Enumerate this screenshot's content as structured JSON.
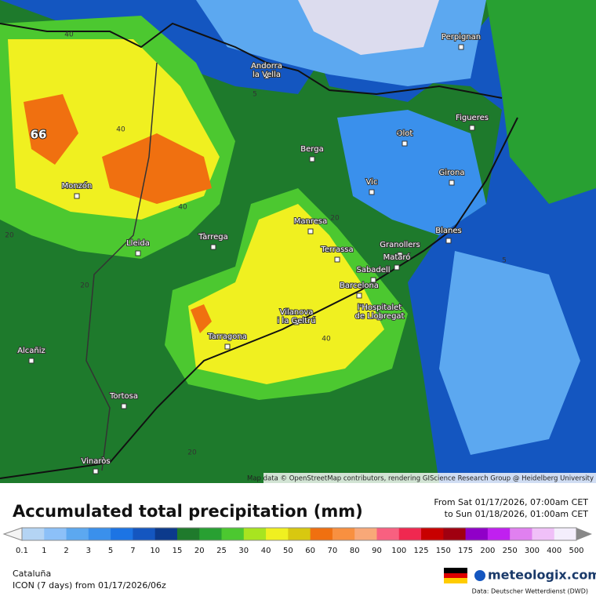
{
  "map": {
    "cities": [
      "Perpignan",
      "Andorra\nla Vella",
      "Figueres",
      "Olot",
      "Berga",
      "Girona",
      "Monzón",
      "Vic",
      "Manresa",
      "Blanes",
      "Tàrrega",
      "Lleida",
      "Terrassa",
      "Granollers",
      "Mataró",
      "Sabadell",
      "Barcelona",
      "Vilanova\ni la Geltrú",
      "l'Hospitalet\nde Llobregat",
      "Tarragona",
      "Alcañiz",
      "Tortosa",
      "Vinaròs"
    ],
    "contour_labels": [
      "40",
      "40",
      "40",
      "20",
      "5",
      "5",
      "5",
      "20",
      "40",
      "20",
      "20"
    ],
    "max_label": "66",
    "attribution": "Map data © OpenStreetMap contributors, rendering GIScience Research Group @ Heidelberg University"
  },
  "header": {
    "title": "Accumulated total precipitation (mm)",
    "from": "From Sat 01/17/2026, 07:00am CET",
    "to": "to Sun 01/18/2026, 01:00am CET"
  },
  "legend": {
    "values": [
      0.1,
      1,
      2,
      3,
      5,
      7,
      10,
      15,
      20,
      25,
      30,
      40,
      50,
      60,
      70,
      80,
      90,
      100,
      125,
      150,
      175,
      200,
      250,
      300,
      400,
      500
    ],
    "colors": [
      "#dcdcee",
      "#b4d4f4",
      "#8cc0f8",
      "#5ca8f0",
      "#3a90ec",
      "#1c74e4",
      "#1456c0",
      "#0c3a8c",
      "#1f7a2c",
      "#28a032",
      "#4cc830",
      "#a8e420",
      "#f0f020",
      "#d8c810",
      "#f07010",
      "#f89040",
      "#f8a878",
      "#f86080",
      "#f02850",
      "#c80000",
      "#a00010",
      "#9000c8",
      "#c020f0",
      "#e080f0",
      "#f0c0f8",
      "#f4eefc"
    ]
  },
  "footer": {
    "region": "Cataluña",
    "model": "ICON (7 days)  from  01/17/2026/06z",
    "brand": "meteologix.com",
    "source": "Data: Deutscher Wetterdienst (DWD)"
  }
}
